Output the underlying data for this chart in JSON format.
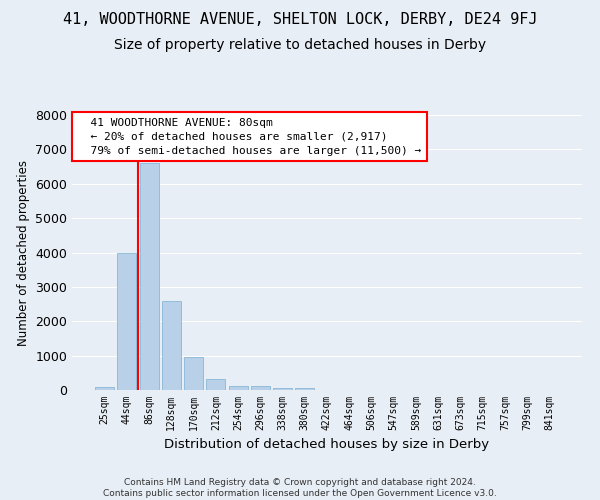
{
  "title_line1": "41, WOODTHORNE AVENUE, SHELTON LOCK, DERBY, DE24 9FJ",
  "title_line2": "Size of property relative to detached houses in Derby",
  "xlabel": "Distribution of detached houses by size in Derby",
  "ylabel": "Number of detached properties",
  "footer": "Contains HM Land Registry data © Crown copyright and database right 2024.\nContains public sector information licensed under the Open Government Licence v3.0.",
  "bar_labels": [
    "25sqm",
    "44sqm",
    "86sqm",
    "128sqm",
    "170sqm",
    "212sqm",
    "254sqm",
    "296sqm",
    "338sqm",
    "380sqm",
    "422sqm",
    "464sqm",
    "506sqm",
    "547sqm",
    "589sqm",
    "631sqm",
    "673sqm",
    "715sqm",
    "757sqm",
    "799sqm",
    "841sqm"
  ],
  "bar_values": [
    80,
    4000,
    6600,
    2600,
    950,
    330,
    130,
    110,
    70,
    50,
    0,
    0,
    0,
    0,
    0,
    0,
    0,
    0,
    0,
    0,
    0
  ],
  "bar_color": "#b8d0e8",
  "bar_edge_color": "#7aafd4",
  "vline_x": 1.5,
  "vline_color": "red",
  "annotation_text": "  41 WOODTHORNE AVENUE: 80sqm\n  ← 20% of detached houses are smaller (2,917)\n  79% of semi-detached houses are larger (11,500) →",
  "annotation_box_color": "red",
  "ylim": [
    0,
    8000
  ],
  "yticks": [
    0,
    1000,
    2000,
    3000,
    4000,
    5000,
    6000,
    7000,
    8000
  ],
  "bg_color": "#e8eef5",
  "plot_bg_color": "#e8eef5",
  "title1_fontsize": 11,
  "title2_fontsize": 10,
  "grid_color": "#ffffff"
}
